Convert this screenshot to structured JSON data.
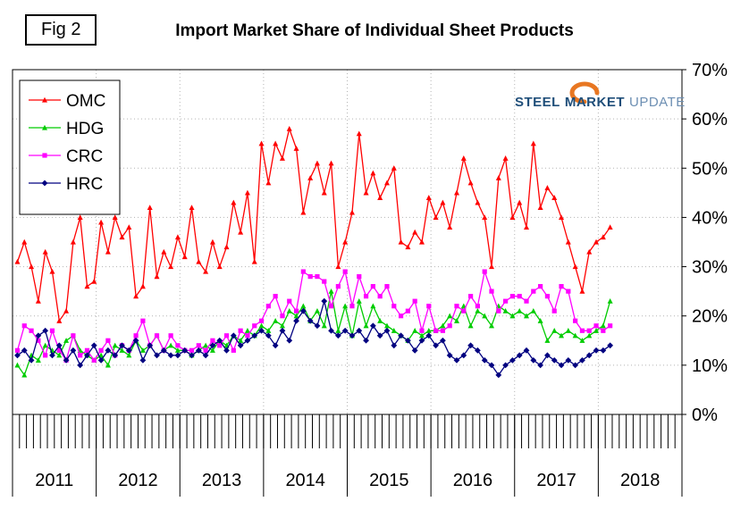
{
  "fig_label": "Fig 2",
  "logo": {
    "steel": "STEEL",
    "market": "MARKET",
    "update": "UPDATE",
    "accent_color": "#e87722"
  },
  "chart_data": {
    "type": "line",
    "title": "Import Market Share of Individual Sheet Products",
    "x_start": "2011-01",
    "x_frequency": "monthly",
    "x_axis_years": [
      "2011",
      "2012",
      "2013",
      "2014",
      "2015",
      "2016",
      "2017",
      "2018"
    ],
    "x_domain_months": 96,
    "ylim": [
      0,
      70
    ],
    "y_tick_step": 10,
    "y_tick_labels": [
      "0%",
      "10%",
      "20%",
      "30%",
      "40%",
      "50%",
      "60%",
      "70%"
    ],
    "grid": true,
    "legend_position": "top-left",
    "series": [
      {
        "name": "OMC",
        "color": "#ff0000",
        "marker": "triangle",
        "values": [
          31,
          35,
          30,
          23,
          33,
          29,
          19,
          21,
          35,
          40,
          26,
          27,
          39,
          33,
          40,
          36,
          38,
          24,
          26,
          42,
          28,
          33,
          30,
          36,
          32,
          42,
          31,
          29,
          35,
          30,
          34,
          43,
          37,
          45,
          31,
          55,
          47,
          55,
          52,
          58,
          54,
          41,
          48,
          51,
          45,
          51,
          30,
          35,
          41,
          57,
          45,
          49,
          44,
          47,
          50,
          35,
          34,
          37,
          35,
          44,
          40,
          43,
          38,
          45,
          52,
          47,
          43,
          40,
          30,
          48,
          52,
          40,
          43,
          38,
          55,
          42,
          46,
          44,
          40,
          35,
          30,
          25,
          33,
          35,
          36,
          38
        ]
      },
      {
        "name": "HDG",
        "color": "#00cc00",
        "marker": "triangle",
        "values": [
          10,
          8,
          12,
          11,
          14,
          13,
          12,
          15,
          16,
          13,
          12,
          11,
          12,
          10,
          14,
          13,
          12,
          15,
          13,
          14,
          16,
          13,
          14,
          13,
          13,
          12,
          13,
          14,
          13,
          15,
          14,
          16,
          15,
          17,
          16,
          18,
          17,
          19,
          18,
          21,
          20,
          22,
          19,
          21,
          18,
          25,
          17,
          22,
          16,
          23,
          18,
          22,
          19,
          18,
          17,
          16,
          15,
          17,
          16,
          17,
          17,
          18,
          20,
          19,
          22,
          18,
          21,
          20,
          18,
          22,
          21,
          20,
          21,
          20,
          21,
          19,
          15,
          17,
          16,
          17,
          16,
          15,
          16,
          17,
          18,
          23
        ]
      },
      {
        "name": "CRC",
        "color": "#ff00ff",
        "marker": "square",
        "values": [
          13,
          18,
          17,
          15,
          12,
          17,
          13,
          11,
          16,
          12,
          13,
          11,
          13,
          15,
          12,
          14,
          13,
          16,
          19,
          14,
          16,
          13,
          16,
          14,
          13,
          13,
          14,
          13,
          15,
          14,
          16,
          13,
          17,
          16,
          18,
          19,
          22,
          24,
          20,
          23,
          21,
          29,
          28,
          28,
          27,
          22,
          26,
          29,
          22,
          28,
          24,
          26,
          24,
          26,
          22,
          20,
          21,
          23,
          17,
          22,
          17,
          17,
          18,
          22,
          21,
          24,
          22,
          29,
          25,
          21,
          23,
          24,
          24,
          23,
          25,
          26,
          24,
          21,
          26,
          25,
          19,
          17,
          17,
          18,
          17,
          18
        ]
      },
      {
        "name": "HRC",
        "color": "#000080",
        "marker": "diamond",
        "values": [
          12,
          13,
          11,
          16,
          17,
          12,
          14,
          11,
          13,
          10,
          12,
          14,
          11,
          13,
          12,
          14,
          13,
          15,
          11,
          14,
          12,
          13,
          12,
          12,
          13,
          12,
          13,
          12,
          14,
          15,
          13,
          16,
          14,
          15,
          16,
          17,
          16,
          14,
          17,
          15,
          19,
          21,
          19,
          18,
          23,
          17,
          16,
          17,
          16,
          17,
          15,
          18,
          16,
          17,
          14,
          16,
          15,
          13,
          15,
          16,
          14,
          15,
          12,
          11,
          12,
          14,
          13,
          11,
          10,
          8,
          10,
          11,
          12,
          13,
          11,
          10,
          12,
          11,
          10,
          11,
          10,
          11,
          12,
          13,
          13,
          14
        ]
      }
    ]
  }
}
